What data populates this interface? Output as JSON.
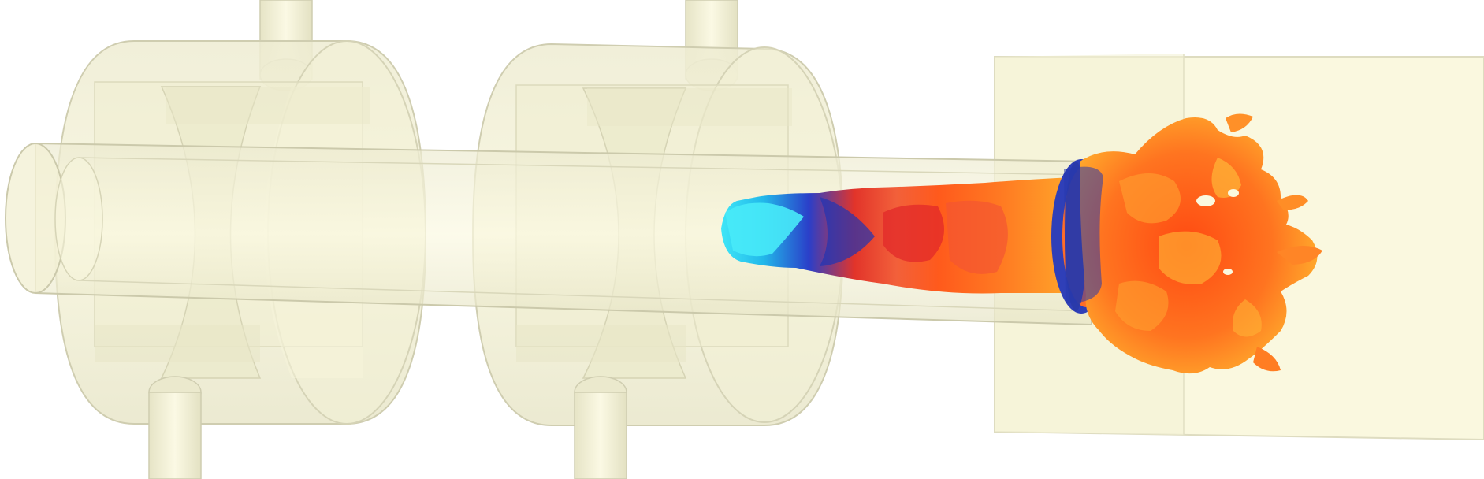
{
  "scene": {
    "background": "#ffffff",
    "palette": {
      "geometry_fill": "#f3f1d4",
      "geometry_stroke": "#c9c7a8",
      "box_fill": "#faf8df",
      "flame_cold": "#29e0f5",
      "flame_mid": "#2a3fc9",
      "flame_hot": "#ff5a1c",
      "flame_edge": "#ffb020"
    },
    "elements": [
      "mixing-chamber-1",
      "mixing-chamber-2",
      "injector-tube-top-1",
      "injector-tube-bottom-1",
      "injector-tube-top-2",
      "injector-tube-bottom-2",
      "jet-pipe",
      "combustion-box",
      "flame-isosurface"
    ]
  }
}
